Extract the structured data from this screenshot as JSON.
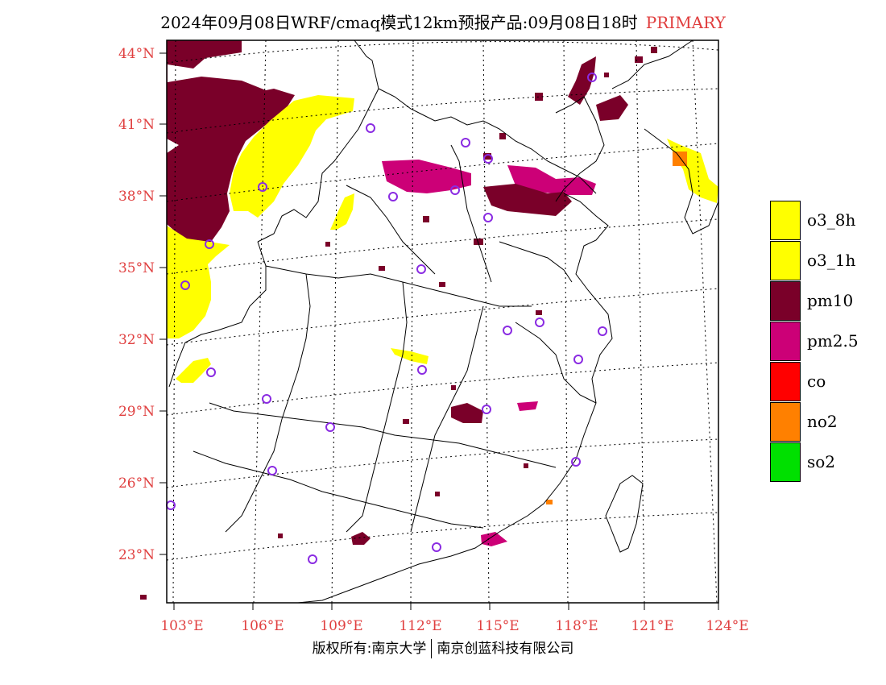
{
  "title": {
    "main": "2024年09月08日WRF/cmaq模式12km预报产品:09月08日18时",
    "tag": "PRIMARY"
  },
  "axes": {
    "lat_labels": [
      "44°N",
      "41°N",
      "38°N",
      "35°N",
      "32°N",
      "29°N",
      "26°N",
      "23°N"
    ],
    "lon_labels": [
      "103°E",
      "106°E",
      "109°E",
      "112°E",
      "115°E",
      "118°E",
      "121°E",
      "124°E"
    ]
  },
  "legend": [
    {
      "label": "o3_8h",
      "color": "#ffff00"
    },
    {
      "label": "o3_1h",
      "color": "#ffff00"
    },
    {
      "label": "pm10",
      "color": "#7a0029"
    },
    {
      "label": "pm2.5",
      "color": "#cc0077"
    },
    {
      "label": "co",
      "color": "#ff0000"
    },
    {
      "label": "no2",
      "color": "#ff8000"
    },
    {
      "label": "so2",
      "color": "#00e000"
    }
  ],
  "copyright": {
    "left": "版权所有:南京大学",
    "right": "南京创蓝科技有限公司"
  }
}
